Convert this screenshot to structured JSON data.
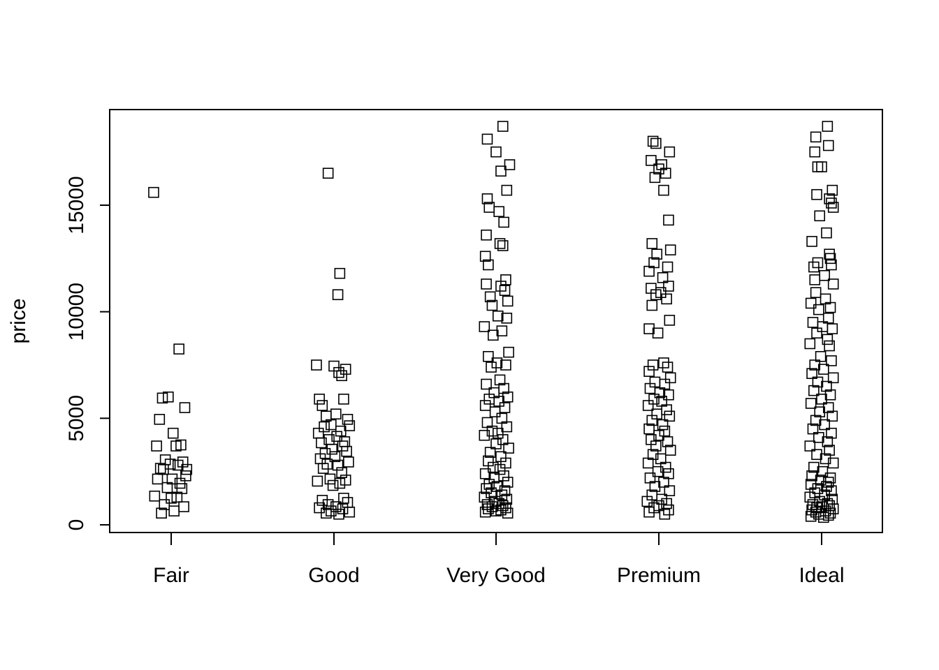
{
  "chart_data": {
    "type": "scatter",
    "title": "",
    "xlabel": "",
    "ylabel": "price",
    "ylim": [
      0,
      19000
    ],
    "yticks": [
      0,
      5000,
      10000,
      15000
    ],
    "ytick_labels": [
      "0",
      "5000",
      "10000",
      "15000"
    ],
    "categories": [
      "Fair",
      "Good",
      "Very Good",
      "Premium",
      "Ideal"
    ],
    "marker": "open-square",
    "series": [
      {
        "name": "Fair",
        "jitter": [
          -0.18,
          0.08,
          -0.03,
          -0.09,
          0.14,
          -0.12,
          0.02,
          0.1,
          -0.15,
          0.05,
          -0.06,
          0.12,
          -0.01,
          0.07,
          -0.11,
          0.16,
          -0.08,
          0.01,
          -0.14,
          0.09,
          -0.04,
          0.11,
          -0.17,
          0.06,
          0.0,
          -0.07,
          0.13,
          0.03,
          -0.1,
          0.15
        ],
        "values": [
          15600,
          8250,
          6000,
          5950,
          5500,
          4950,
          4300,
          3750,
          3700,
          3700,
          3050,
          2950,
          2850,
          2800,
          2650,
          2600,
          2600,
          2150,
          2150,
          1950,
          1750,
          1700,
          1350,
          1300,
          1250,
          950,
          850,
          650,
          550,
          2300
        ]
      },
      {
        "name": "Good",
        "jitter": [
          -0.06,
          0.06,
          0.04,
          -0.18,
          0.0,
          0.12,
          0.05,
          0.08,
          -0.15,
          0.1,
          -0.12,
          0.02,
          -0.08,
          0.14,
          -0.03,
          0.16,
          -0.1,
          0.07,
          -0.16,
          0.03,
          -0.05,
          0.11,
          -0.13,
          0.09,
          -0.02,
          0.13,
          -0.09,
          0.01,
          -0.14,
          0.15,
          -0.07,
          0.04,
          -0.11,
          0.08,
          -0.04,
          0.12,
          -0.17,
          0.06,
          -0.01,
          0.1,
          -0.12,
          0.14,
          -0.06,
          0.02,
          -0.15,
          0.09,
          -0.03,
          0.16,
          -0.08,
          0.05
        ],
        "values": [
          16500,
          11800,
          10800,
          7500,
          7450,
          7300,
          7150,
          7000,
          5900,
          5900,
          5600,
          5200,
          5100,
          4950,
          4700,
          4650,
          4600,
          4400,
          4300,
          4150,
          4000,
          3900,
          3850,
          3700,
          3550,
          3450,
          3350,
          3200,
          3100,
          2950,
          2850,
          2800,
          2650,
          2450,
          2150,
          2100,
          2050,
          1950,
          1850,
          1250,
          1150,
          1050,
          950,
          850,
          800,
          750,
          650,
          600,
          550,
          500
        ]
      },
      {
        "name": "Very Good",
        "jitter": [
          0.07,
          -0.09,
          0.0,
          0.14,
          0.05,
          0.11,
          -0.09,
          -0.07,
          0.03,
          0.08,
          -0.1,
          0.04,
          0.07,
          -0.11,
          -0.08,
          0.1,
          -0.1,
          0.05,
          0.09,
          -0.06,
          0.12,
          -0.04,
          0.02,
          0.11,
          -0.12,
          0.06,
          -0.03,
          0.13,
          -0.08,
          0.01,
          0.1,
          -0.05,
          0.04,
          -0.1,
          0.08,
          -0.02,
          0.12,
          -0.07,
          0.03,
          -0.11,
          0.09,
          -0.01,
          0.06,
          -0.09,
          0.11,
          -0.04,
          0.02,
          -0.12,
          0.07,
          0.0,
          0.13,
          -0.06,
          0.05,
          -0.08,
          0.1,
          -0.03,
          0.04,
          -0.11,
          0.08,
          -0.02,
          0.12,
          -0.07,
          0.01,
          -0.1,
          0.09,
          -0.05,
          0.06,
          -0.12,
          0.11,
          -0.01,
          0.03,
          -0.09,
          0.07,
          -0.04,
          0.1,
          -0.08,
          0.05,
          0.0,
          -0.11,
          0.12
        ],
        "values": [
          18700,
          18100,
          17500,
          16900,
          16600,
          15700,
          15300,
          14900,
          14700,
          14200,
          13600,
          13200,
          13100,
          12600,
          12200,
          11500,
          11300,
          11200,
          11000,
          10700,
          10500,
          10300,
          9800,
          9700,
          9300,
          9100,
          8900,
          8100,
          7900,
          7600,
          7500,
          7400,
          6800,
          6600,
          6400,
          6200,
          6000,
          5900,
          5800,
          5600,
          5500,
          5300,
          5000,
          4800,
          4600,
          4400,
          4300,
          4200,
          4000,
          3800,
          3600,
          3400,
          3200,
          3000,
          2900,
          2700,
          2600,
          2400,
          2300,
          2200,
          2000,
          1900,
          1800,
          1700,
          1600,
          1500,
          1400,
          1300,
          1200,
          1100,
          1000,
          950,
          900,
          850,
          800,
          750,
          700,
          650,
          600,
          550
        ]
      },
      {
        "name": "Premium",
        "jitter": [
          -0.06,
          -0.03,
          0.11,
          -0.08,
          0.03,
          0.0,
          0.07,
          -0.04,
          0.05,
          0.1,
          -0.07,
          0.12,
          -0.02,
          -0.05,
          0.09,
          -0.1,
          0.04,
          0.1,
          -0.08,
          0.02,
          -0.03,
          0.08,
          -0.07,
          0.11,
          -0.1,
          -0.01,
          0.05,
          -0.06,
          0.09,
          -0.1,
          0.12,
          -0.04,
          0.06,
          -0.09,
          0.01,
          0.1,
          -0.05,
          0.03,
          -0.11,
          0.08,
          -0.02,
          0.11,
          -0.07,
          0.04,
          -0.1,
          0.06,
          0.0,
          -0.08,
          0.09,
          -0.03,
          0.12,
          -0.06,
          0.02,
          -0.11,
          0.07,
          -0.01,
          0.1,
          -0.09,
          0.05,
          -0.04,
          0.11,
          -0.07,
          0.03,
          -0.12,
          0.08,
          0.0,
          -0.05,
          0.1,
          -0.1,
          0.06
        ],
        "values": [
          18000,
          17900,
          17500,
          17100,
          16900,
          16700,
          16500,
          16300,
          15700,
          14300,
          13200,
          12900,
          12700,
          12300,
          12100,
          11900,
          11600,
          11200,
          11100,
          10900,
          10800,
          10600,
          10300,
          9600,
          9200,
          9000,
          7600,
          7500,
          7400,
          7200,
          6900,
          6700,
          6600,
          6400,
          6200,
          6100,
          5900,
          5800,
          5600,
          5400,
          5200,
          5100,
          4900,
          4700,
          4500,
          4400,
          4200,
          4000,
          3900,
          3700,
          3500,
          3300,
          3100,
          2900,
          2700,
          2500,
          2400,
          2200,
          2000,
          1800,
          1600,
          1400,
          1200,
          1100,
          1000,
          900,
          800,
          700,
          600,
          500
        ]
      },
      {
        "name": "Ideal",
        "jitter": [
          0.06,
          -0.06,
          0.07,
          -0.07,
          -0.04,
          0.0,
          0.11,
          -0.05,
          0.08,
          0.1,
          0.12,
          -0.02,
          0.05,
          -0.1,
          0.08,
          0.09,
          -0.04,
          0.1,
          -0.08,
          0.03,
          -0.07,
          0.12,
          -0.06,
          0.04,
          -0.11,
          0.09,
          -0.03,
          0.07,
          -0.09,
          0.01,
          0.11,
          -0.05,
          0.06,
          -0.12,
          0.08,
          -0.01,
          0.1,
          -0.07,
          0.02,
          -0.1,
          0.12,
          -0.04,
          0.05,
          -0.08,
          0.09,
          0.0,
          -0.11,
          0.07,
          -0.02,
          0.11,
          -0.06,
          0.03,
          -0.09,
          0.1,
          -0.03,
          0.06,
          -0.12,
          0.08,
          -0.05,
          0.04,
          0.12,
          -0.08,
          0.01,
          -0.1,
          0.09,
          -0.01,
          0.07,
          -0.11,
          0.05,
          -0.04,
          0.1,
          -0.07,
          0.03,
          -0.12,
          0.11,
          -0.02,
          0.06,
          -0.09,
          0.08,
          0.0,
          -0.05,
          0.12,
          -0.1,
          0.04,
          -0.06,
          0.09,
          -0.03,
          0.07,
          -0.11,
          0.02
        ],
        "values": [
          18700,
          18200,
          17800,
          17500,
          16800,
          16800,
          15700,
          15500,
          15300,
          15100,
          14900,
          14500,
          13700,
          13300,
          12700,
          12500,
          12300,
          12200,
          12100,
          11700,
          11500,
          11300,
          10900,
          10600,
          10400,
          10200,
          10100,
          9700,
          9500,
          9300,
          9200,
          9000,
          8700,
          8500,
          8400,
          7900,
          7700,
          7500,
          7300,
          7100,
          6900,
          6700,
          6500,
          6300,
          6100,
          5900,
          5700,
          5500,
          5300,
          5100,
          4900,
          4700,
          4500,
          4300,
          4100,
          3900,
          3700,
          3500,
          3300,
          3100,
          2900,
          2700,
          2500,
          2300,
          2200,
          2100,
          2000,
          1900,
          1800,
          1700,
          1600,
          1500,
          1400,
          1300,
          1200,
          1100,
          1000,
          950,
          900,
          850,
          800,
          750,
          700,
          650,
          600,
          550,
          500,
          450,
          400,
          350
        ]
      }
    ]
  }
}
